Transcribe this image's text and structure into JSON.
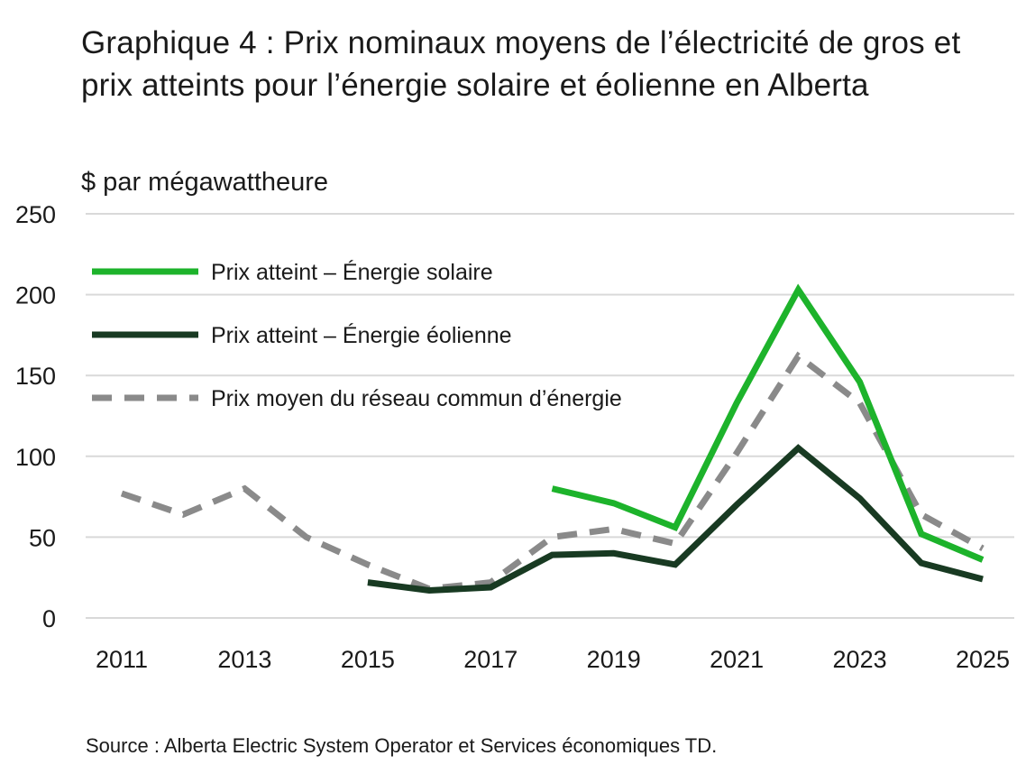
{
  "chart_data": {
    "type": "line",
    "title": "Graphique 4 : Prix nominaux moyens de l’électricité de gros et prix atteints pour l’énergie solaire et éolienne en Alberta",
    "ylabel": "$ par mégawattheure",
    "source": "Source : Alberta Electric System Operator et Services économiques TD.",
    "x": [
      2011,
      2012,
      2013,
      2014,
      2015,
      2016,
      2017,
      2018,
      2019,
      2020,
      2021,
      2022,
      2023,
      2024,
      2025
    ],
    "x_tick_labels": [
      "2011",
      "2013",
      "2015",
      "2017",
      "2019",
      "2021",
      "2023",
      "2025"
    ],
    "y_ticks": [
      0,
      50,
      100,
      150,
      200,
      250
    ],
    "ylim": [
      0,
      250
    ],
    "grid": true,
    "legend_position": "top-left",
    "series": [
      {
        "name": "Prix atteint – Énergie solaire",
        "color": "#1db32b",
        "style": "solid",
        "values": [
          null,
          null,
          null,
          null,
          null,
          null,
          null,
          80,
          71,
          56,
          133,
          203,
          146,
          52,
          36
        ]
      },
      {
        "name": "Prix atteint – Énergie éolienne",
        "color": "#183a22",
        "style": "solid",
        "values": [
          null,
          null,
          null,
          null,
          22,
          17,
          19,
          39,
          40,
          33,
          70,
          105,
          74,
          34,
          24
        ]
      },
      {
        "name": "Prix moyen du réseau commun d’énergie",
        "color": "#8a8a8a",
        "style": "dashed",
        "values": [
          77,
          64,
          80,
          50,
          33,
          18,
          22,
          50,
          55,
          46,
          102,
          162,
          133,
          64,
          43
        ]
      }
    ]
  }
}
